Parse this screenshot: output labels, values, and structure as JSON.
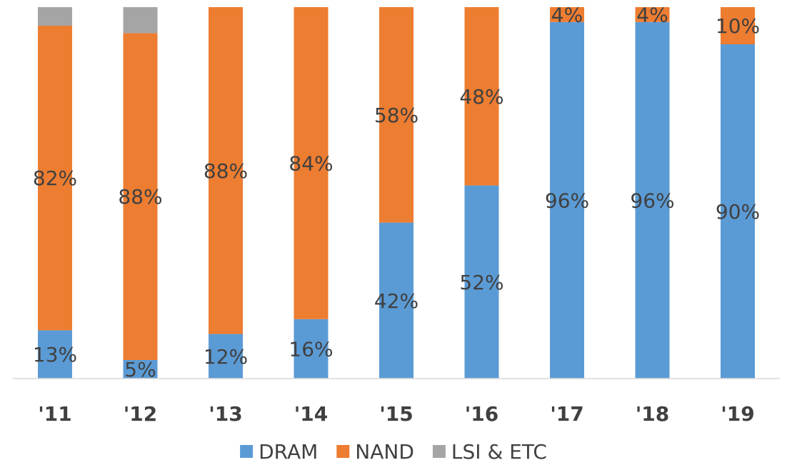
{
  "chart_data": {
    "type": "bar",
    "stacked": true,
    "normalized_percent": true,
    "categories": [
      "'11",
      "'12",
      "'13",
      "'14",
      "'15",
      "'16",
      "'17",
      "'18",
      "'19"
    ],
    "series": [
      {
        "name": "DRAM",
        "color": "#5B9BD5",
        "values": [
          13,
          5,
          12,
          16,
          42,
          52,
          96,
          96,
          90
        ],
        "labels": [
          "13%",
          "5%",
          "12%",
          "16%",
          "42%",
          "52%",
          "96%",
          "96%",
          "90%"
        ]
      },
      {
        "name": "NAND",
        "color": "#ED7D31",
        "values": [
          82,
          88,
          88,
          84,
          58,
          48,
          4,
          4,
          10
        ],
        "labels": [
          "82%",
          "88%",
          "88%",
          "84%",
          "58%",
          "48%",
          "4%",
          "4%",
          "10%"
        ]
      },
      {
        "name": "LSI & ETC",
        "color": "#A5A5A5",
        "values": [
          5,
          7,
          0,
          0,
          0,
          0,
          0,
          0,
          0
        ],
        "labels": [
          "",
          "",
          "",
          "",
          "",
          "",
          "",
          "",
          ""
        ]
      }
    ],
    "ylim": [
      0,
      100
    ],
    "grid": false,
    "legend": "bottom"
  }
}
